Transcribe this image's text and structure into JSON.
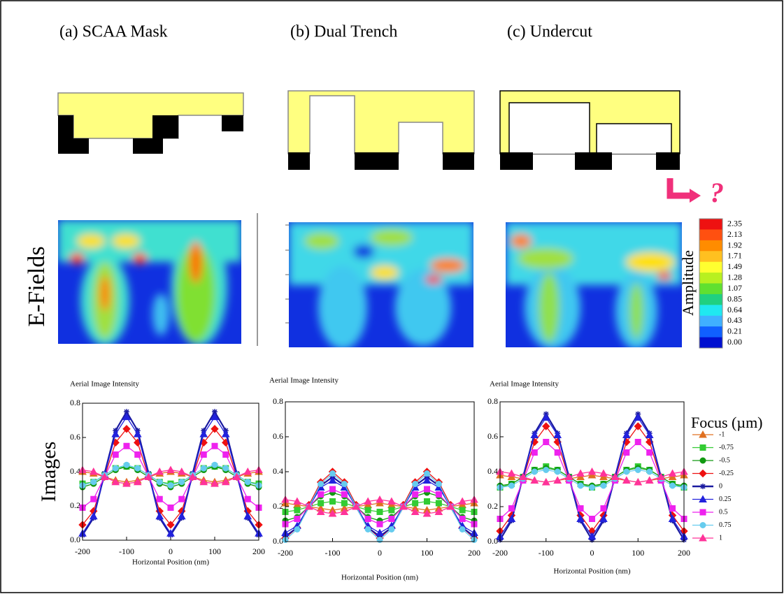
{
  "panels": [
    "(a) SCAA Mask",
    "(b) Dual Trench",
    "(c) Undercut"
  ],
  "row_labels": {
    "efields": "E-Fields",
    "images": "Images"
  },
  "annotation": "?",
  "colorbar": {
    "title": "Amplitude",
    "labels": [
      "2.35",
      "2.13",
      "1.92",
      "1.71",
      "1.49",
      "1.28",
      "1.07",
      "0.85",
      "0.64",
      "0.43",
      "0.21",
      "0.00"
    ]
  },
  "chart_data": [
    {
      "type": "line",
      "title": "Aerial Image Intensity",
      "xlabel": "Horizontal Position (nm)",
      "x": [
        -200,
        -175,
        -150,
        -125,
        -100,
        -75,
        -50,
        -25,
        0,
        25,
        50,
        75,
        100,
        125,
        150,
        175,
        200
      ],
      "xlim": [
        -200,
        200
      ],
      "xticks": [
        -200,
        -100,
        0,
        100,
        200
      ],
      "ylim": [
        0,
        0.8
      ],
      "yticks": [
        {
          "value": 0,
          "label": "0.0"
        },
        0.2,
        0.4,
        0.6,
        0.8
      ],
      "series": [
        {
          "color": "#e07020",
          "marker": "triangle",
          "values": [
            0.4,
            0.39,
            0.37,
            0.35,
            0.34,
            0.35,
            0.37,
            0.39,
            0.4,
            0.39,
            0.37,
            0.35,
            0.34,
            0.35,
            0.37,
            0.39,
            0.4
          ]
        },
        {
          "color": "#33cc33",
          "marker": "square",
          "values": [
            0.33,
            0.34,
            0.38,
            0.42,
            0.43,
            0.42,
            0.38,
            0.34,
            0.33,
            0.34,
            0.38,
            0.42,
            0.43,
            0.42,
            0.38,
            0.34,
            0.33
          ]
        },
        {
          "color": "#119911",
          "marker": "circle",
          "values": [
            0.31,
            0.33,
            0.37,
            0.41,
            0.43,
            0.41,
            0.37,
            0.33,
            0.31,
            0.33,
            0.37,
            0.41,
            0.43,
            0.41,
            0.37,
            0.33,
            0.31
          ]
        },
        {
          "color": "#ee1111",
          "marker": "diamond",
          "values": [
            0.09,
            0.17,
            0.37,
            0.57,
            0.65,
            0.57,
            0.37,
            0.17,
            0.09,
            0.17,
            0.37,
            0.57,
            0.65,
            0.57,
            0.37,
            0.17,
            0.09
          ]
        },
        {
          "color": "#1a1aa0",
          "marker": "star",
          "values": [
            0.03,
            0.13,
            0.39,
            0.64,
            0.75,
            0.64,
            0.39,
            0.13,
            0.03,
            0.13,
            0.39,
            0.64,
            0.75,
            0.64,
            0.39,
            0.13,
            0.03
          ]
        },
        {
          "color": "#2222dd",
          "marker": "triangle",
          "values": [
            0.04,
            0.14,
            0.38,
            0.62,
            0.72,
            0.62,
            0.38,
            0.14,
            0.04,
            0.14,
            0.38,
            0.62,
            0.72,
            0.62,
            0.38,
            0.14,
            0.04
          ]
        },
        {
          "color": "#ee22ee",
          "marker": "square",
          "values": [
            0.19,
            0.24,
            0.37,
            0.5,
            0.55,
            0.5,
            0.37,
            0.24,
            0.19,
            0.24,
            0.37,
            0.5,
            0.55,
            0.5,
            0.37,
            0.24,
            0.19
          ]
        },
        {
          "color": "#66ccee",
          "marker": "circle",
          "values": [
            0.32,
            0.34,
            0.38,
            0.42,
            0.44,
            0.42,
            0.38,
            0.34,
            0.32,
            0.34,
            0.38,
            0.42,
            0.44,
            0.42,
            0.38,
            0.34,
            0.32
          ]
        },
        {
          "color": "#ff3399",
          "marker": "triangle",
          "values": [
            0.41,
            0.4,
            0.37,
            0.34,
            0.33,
            0.34,
            0.37,
            0.4,
            0.41,
            0.4,
            0.37,
            0.34,
            0.33,
            0.34,
            0.37,
            0.4,
            0.41
          ]
        }
      ]
    },
    {
      "type": "line",
      "title": "Aerial Image Intensity",
      "xlabel": "Horizontal Position (nm)",
      "x": [
        -200,
        -175,
        -150,
        -125,
        -100,
        -75,
        -50,
        -25,
        0,
        25,
        50,
        75,
        100,
        125,
        150,
        175,
        200
      ],
      "xlim": [
        -200,
        200
      ],
      "xticks": [
        -200,
        -100,
        0,
        100,
        200
      ],
      "ylim": [
        0,
        0.8
      ],
      "yticks": [
        {
          "value": 0,
          "label": "0.0"
        },
        0.2,
        0.4,
        0.6,
        0.8
      ],
      "series": [
        {
          "color": "#e07020",
          "marker": "triangle",
          "values": [
            0.22,
            0.21,
            0.2,
            0.19,
            0.18,
            0.19,
            0.2,
            0.21,
            0.22,
            0.21,
            0.2,
            0.19,
            0.18,
            0.19,
            0.2,
            0.21,
            0.22
          ]
        },
        {
          "color": "#33cc33",
          "marker": "square",
          "values": [
            0.17,
            0.18,
            0.2,
            0.22,
            0.23,
            0.22,
            0.2,
            0.18,
            0.17,
            0.18,
            0.2,
            0.22,
            0.23,
            0.22,
            0.2,
            0.18,
            0.17
          ]
        },
        {
          "color": "#119911",
          "marker": "circle",
          "values": [
            0.12,
            0.14,
            0.2,
            0.26,
            0.28,
            0.26,
            0.2,
            0.14,
            0.12,
            0.14,
            0.2,
            0.26,
            0.28,
            0.26,
            0.2,
            0.14,
            0.12
          ]
        },
        {
          "color": "#ee1111",
          "marker": "diamond",
          "values": [
            0.02,
            0.08,
            0.21,
            0.34,
            0.4,
            0.34,
            0.21,
            0.08,
            0.02,
            0.08,
            0.21,
            0.34,
            0.4,
            0.34,
            0.21,
            0.08,
            0.02
          ]
        },
        {
          "color": "#1a1aa0",
          "marker": "star",
          "values": [
            0.03,
            0.08,
            0.2,
            0.32,
            0.37,
            0.32,
            0.2,
            0.08,
            0.03,
            0.08,
            0.2,
            0.32,
            0.37,
            0.32,
            0.2,
            0.08,
            0.03
          ]
        },
        {
          "color": "#2222dd",
          "marker": "triangle",
          "values": [
            0.05,
            0.09,
            0.2,
            0.31,
            0.35,
            0.31,
            0.2,
            0.09,
            0.05,
            0.09,
            0.2,
            0.31,
            0.35,
            0.31,
            0.2,
            0.09,
            0.05
          ]
        },
        {
          "color": "#ee22ee",
          "marker": "square",
          "values": [
            0.1,
            0.13,
            0.2,
            0.27,
            0.3,
            0.27,
            0.2,
            0.13,
            0.1,
            0.13,
            0.2,
            0.27,
            0.3,
            0.27,
            0.2,
            0.13,
            0.1
          ]
        },
        {
          "color": "#66ccee",
          "marker": "circle",
          "values": [
            0.01,
            0.07,
            0.2,
            0.33,
            0.39,
            0.33,
            0.2,
            0.07,
            0.01,
            0.07,
            0.2,
            0.33,
            0.39,
            0.33,
            0.2,
            0.07,
            0.01
          ]
        },
        {
          "color": "#ff3399",
          "marker": "triangle",
          "values": [
            0.24,
            0.23,
            0.2,
            0.17,
            0.16,
            0.17,
            0.2,
            0.23,
            0.24,
            0.23,
            0.2,
            0.17,
            0.16,
            0.17,
            0.2,
            0.23,
            0.24
          ]
        }
      ]
    },
    {
      "type": "line",
      "title": "Aerial Image Intensity",
      "xlabel": "Horizontal Position (nm)",
      "x": [
        -200,
        -175,
        -150,
        -125,
        -100,
        -75,
        -50,
        -25,
        0,
        25,
        50,
        75,
        100,
        125,
        150,
        175,
        200
      ],
      "xlim": [
        -200,
        200
      ],
      "xticks": [
        -200,
        -100,
        0,
        100,
        200
      ],
      "ylim": [
        0,
        0.8
      ],
      "yticks": [
        {
          "value": 0,
          "label": "0.0"
        },
        0.2,
        0.4,
        0.6,
        0.8
      ],
      "legend": "right",
      "legend_title": "Focus (µm)",
      "series": [
        {
          "name": "-1",
          "color": "#e07020",
          "marker": "triangle",
          "values": [
            0.38,
            0.37,
            0.36,
            0.35,
            0.34,
            0.35,
            0.36,
            0.37,
            0.38,
            0.37,
            0.36,
            0.35,
            0.34,
            0.35,
            0.36,
            0.37,
            0.38
          ]
        },
        {
          "name": "-0.75",
          "color": "#33cc33",
          "marker": "square",
          "values": [
            0.31,
            0.33,
            0.37,
            0.41,
            0.43,
            0.41,
            0.37,
            0.33,
            0.31,
            0.33,
            0.37,
            0.41,
            0.43,
            0.41,
            0.37,
            0.33,
            0.31
          ]
        },
        {
          "name": "-0.5",
          "color": "#119911",
          "marker": "circle",
          "values": [
            0.32,
            0.33,
            0.37,
            0.41,
            0.42,
            0.41,
            0.37,
            0.33,
            0.32,
            0.33,
            0.37,
            0.41,
            0.42,
            0.41,
            0.37,
            0.33,
            0.32
          ]
        },
        {
          "name": "-0.25",
          "color": "#ee1111",
          "marker": "diamond",
          "values": [
            0.06,
            0.15,
            0.36,
            0.57,
            0.66,
            0.57,
            0.36,
            0.15,
            0.06,
            0.15,
            0.36,
            0.57,
            0.66,
            0.57,
            0.36,
            0.15,
            0.06
          ]
        },
        {
          "name": "0",
          "color": "#1a1aa0",
          "marker": "star",
          "values": [
            0.01,
            0.12,
            0.37,
            0.62,
            0.73,
            0.62,
            0.37,
            0.12,
            0.01,
            0.12,
            0.37,
            0.62,
            0.73,
            0.62,
            0.37,
            0.12,
            0.01
          ]
        },
        {
          "name": "0.25",
          "color": "#2222dd",
          "marker": "triangle",
          "values": [
            0.03,
            0.13,
            0.37,
            0.61,
            0.71,
            0.61,
            0.37,
            0.13,
            0.03,
            0.13,
            0.37,
            0.61,
            0.71,
            0.61,
            0.37,
            0.13,
            0.03
          ]
        },
        {
          "name": "0.5",
          "color": "#ee22ee",
          "marker": "square",
          "values": [
            0.13,
            0.19,
            0.35,
            0.51,
            0.57,
            0.51,
            0.35,
            0.19,
            0.13,
            0.19,
            0.35,
            0.51,
            0.57,
            0.51,
            0.35,
            0.19,
            0.13
          ]
        },
        {
          "name": "0.75",
          "color": "#66ccee",
          "marker": "circle",
          "values": [
            0.31,
            0.32,
            0.36,
            0.4,
            0.41,
            0.4,
            0.36,
            0.32,
            0.31,
            0.32,
            0.36,
            0.4,
            0.41,
            0.4,
            0.36,
            0.32,
            0.31
          ]
        },
        {
          "name": "1",
          "color": "#ff3399",
          "marker": "triangle",
          "values": [
            0.4,
            0.39,
            0.37,
            0.35,
            0.34,
            0.35,
            0.37,
            0.39,
            0.4,
            0.39,
            0.37,
            0.35,
            0.34,
            0.35,
            0.37,
            0.39,
            0.4
          ]
        }
      ]
    }
  ]
}
